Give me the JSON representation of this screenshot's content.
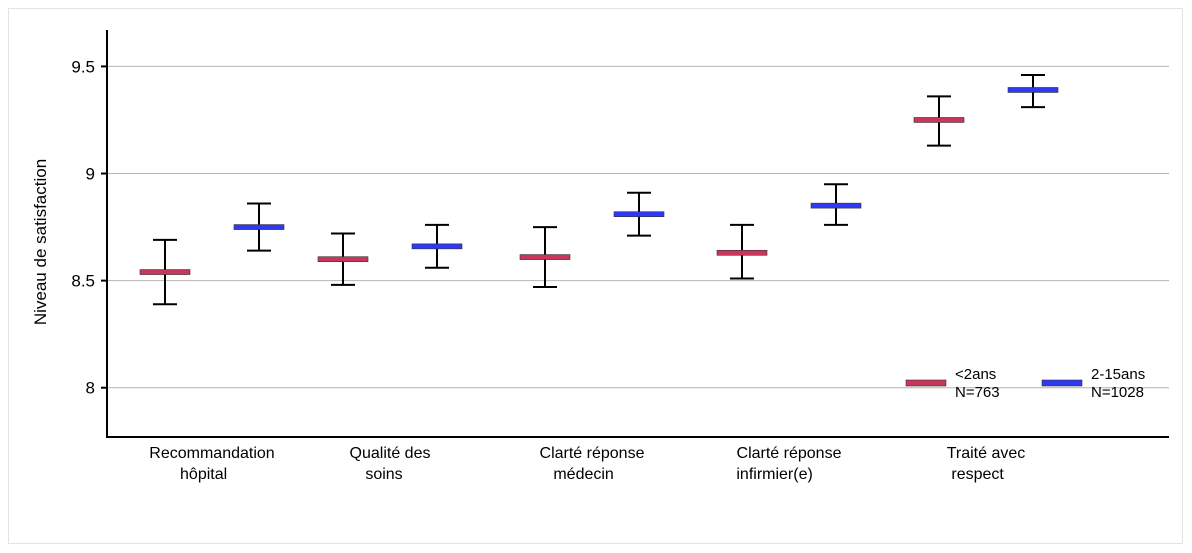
{
  "chart_data": {
    "type": "errorbar",
    "ylabel": "Niveau de satisfaction",
    "ylim": [
      7.77,
      9.67
    ],
    "yticks": [
      "8",
      "8.5",
      "9",
      "9.5"
    ],
    "grid": true,
    "legend_position": "bottom-right",
    "categories": [
      [
        "Recommandation",
        "hôpital"
      ],
      [
        "Qualité des",
        "soins"
      ],
      [
        "Clarté réponse",
        "médecin"
      ],
      [
        "Clarté réponse",
        "infirmier(e)"
      ],
      [
        "Traité avec",
        "respect"
      ]
    ],
    "series": [
      {
        "name": [
          "<2ans",
          "N=763"
        ],
        "color": "#c8375b",
        "values": [
          8.54,
          8.6,
          8.61,
          8.63,
          9.25
        ],
        "lower": [
          8.39,
          8.48,
          8.47,
          8.51,
          9.13
        ],
        "upper": [
          8.69,
          8.72,
          8.75,
          8.76,
          9.36
        ]
      },
      {
        "name": [
          "2-15ans",
          "N=1028"
        ],
        "color": "#2f38f2",
        "values": [
          8.75,
          8.66,
          8.81,
          8.85,
          9.39
        ],
        "lower": [
          8.64,
          8.56,
          8.71,
          8.76,
          9.31
        ],
        "upper": [
          8.86,
          8.76,
          8.91,
          8.95,
          9.46
        ]
      }
    ]
  }
}
